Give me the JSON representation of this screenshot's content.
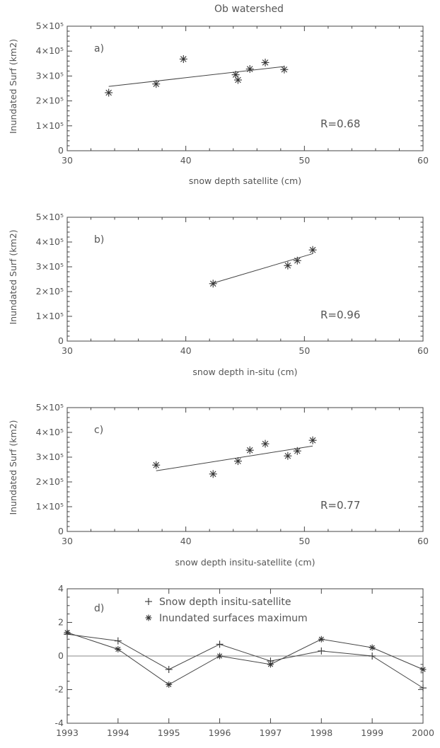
{
  "figure_title": "Ob watershed",
  "chart_data": [
    {
      "type": "scatter",
      "panel_label": "a)",
      "xlabel": "snow depth satellite (cm)",
      "ylabel": "Inundated Surf (km2)",
      "xlim": [
        30,
        60
      ],
      "ylim": [
        0,
        500000
      ],
      "xticks": [
        30,
        40,
        50,
        60
      ],
      "yticks": [
        0,
        100000,
        200000,
        300000,
        400000,
        500000
      ],
      "annotation": "R=0.68",
      "points": [
        {
          "x": 33.5,
          "y": 233000
        },
        {
          "x": 37.5,
          "y": 268000
        },
        {
          "x": 39.8,
          "y": 368000
        },
        {
          "x": 44.2,
          "y": 305000
        },
        {
          "x": 44.4,
          "y": 284000
        },
        {
          "x": 45.4,
          "y": 328000
        },
        {
          "x": 46.7,
          "y": 354000
        },
        {
          "x": 48.3,
          "y": 326000
        }
      ],
      "fit_line": [
        {
          "x": 33.5,
          "y": 258000
        },
        {
          "x": 48.3,
          "y": 338000
        }
      ]
    },
    {
      "type": "scatter",
      "panel_label": "b)",
      "xlabel": "snow depth in-situ (cm)",
      "ylabel": "Inundated Surf (km2)",
      "xlim": [
        30,
        60
      ],
      "ylim": [
        0,
        500000
      ],
      "xticks": [
        30,
        40,
        50,
        60
      ],
      "yticks": [
        0,
        100000,
        200000,
        300000,
        400000,
        500000
      ],
      "annotation": "R=0.96",
      "points": [
        {
          "x": 42.3,
          "y": 232000
        },
        {
          "x": 48.6,
          "y": 305000
        },
        {
          "x": 49.4,
          "y": 325000
        },
        {
          "x": 50.7,
          "y": 368000
        }
      ],
      "fit_line": [
        {
          "x": 42.3,
          "y": 234000
        },
        {
          "x": 50.7,
          "y": 353000
        }
      ]
    },
    {
      "type": "scatter",
      "panel_label": "c)",
      "xlabel": "snow depth insitu-satellite (cm)",
      "ylabel": "Inundated Surf (km2)",
      "xlim": [
        30,
        60
      ],
      "ylim": [
        0,
        500000
      ],
      "xticks": [
        30,
        40,
        50,
        60
      ],
      "yticks": [
        0,
        100000,
        200000,
        300000,
        400000,
        500000
      ],
      "annotation": "R=0.77",
      "points": [
        {
          "x": 37.5,
          "y": 268000
        },
        {
          "x": 42.3,
          "y": 232000
        },
        {
          "x": 44.4,
          "y": 284000
        },
        {
          "x": 45.4,
          "y": 328000
        },
        {
          "x": 46.7,
          "y": 354000
        },
        {
          "x": 48.6,
          "y": 305000
        },
        {
          "x": 49.4,
          "y": 325000
        },
        {
          "x": 50.7,
          "y": 368000
        }
      ],
      "fit_line": [
        {
          "x": 37.5,
          "y": 245000
        },
        {
          "x": 50.7,
          "y": 345000
        }
      ]
    },
    {
      "type": "line",
      "panel_label": "d)",
      "xlim": [
        1993,
        2000
      ],
      "ylim": [
        -4,
        4
      ],
      "xticks": [
        1993,
        1994,
        1995,
        1996,
        1997,
        1998,
        1999,
        2000
      ],
      "yticks": [
        -4,
        -2,
        0,
        2,
        4
      ],
      "zero_line": true,
      "series": [
        {
          "name": "Snow depth insitu-satellite",
          "marker": "+",
          "x": [
            1993,
            1994,
            1995,
            1996,
            1997,
            1998,
            1999,
            2000
          ],
          "values": [
            1.3,
            0.9,
            -0.8,
            0.7,
            -0.3,
            0.3,
            0.0,
            -1.9
          ]
        },
        {
          "name": "Inundated surfaces maximum",
          "marker": "*",
          "x": [
            1993,
            1994,
            1995,
            1996,
            1997,
            1998,
            1999,
            2000
          ],
          "values": [
            1.4,
            0.4,
            -1.7,
            0.0,
            -0.5,
            1.0,
            0.5,
            -0.8
          ]
        }
      ]
    }
  ]
}
